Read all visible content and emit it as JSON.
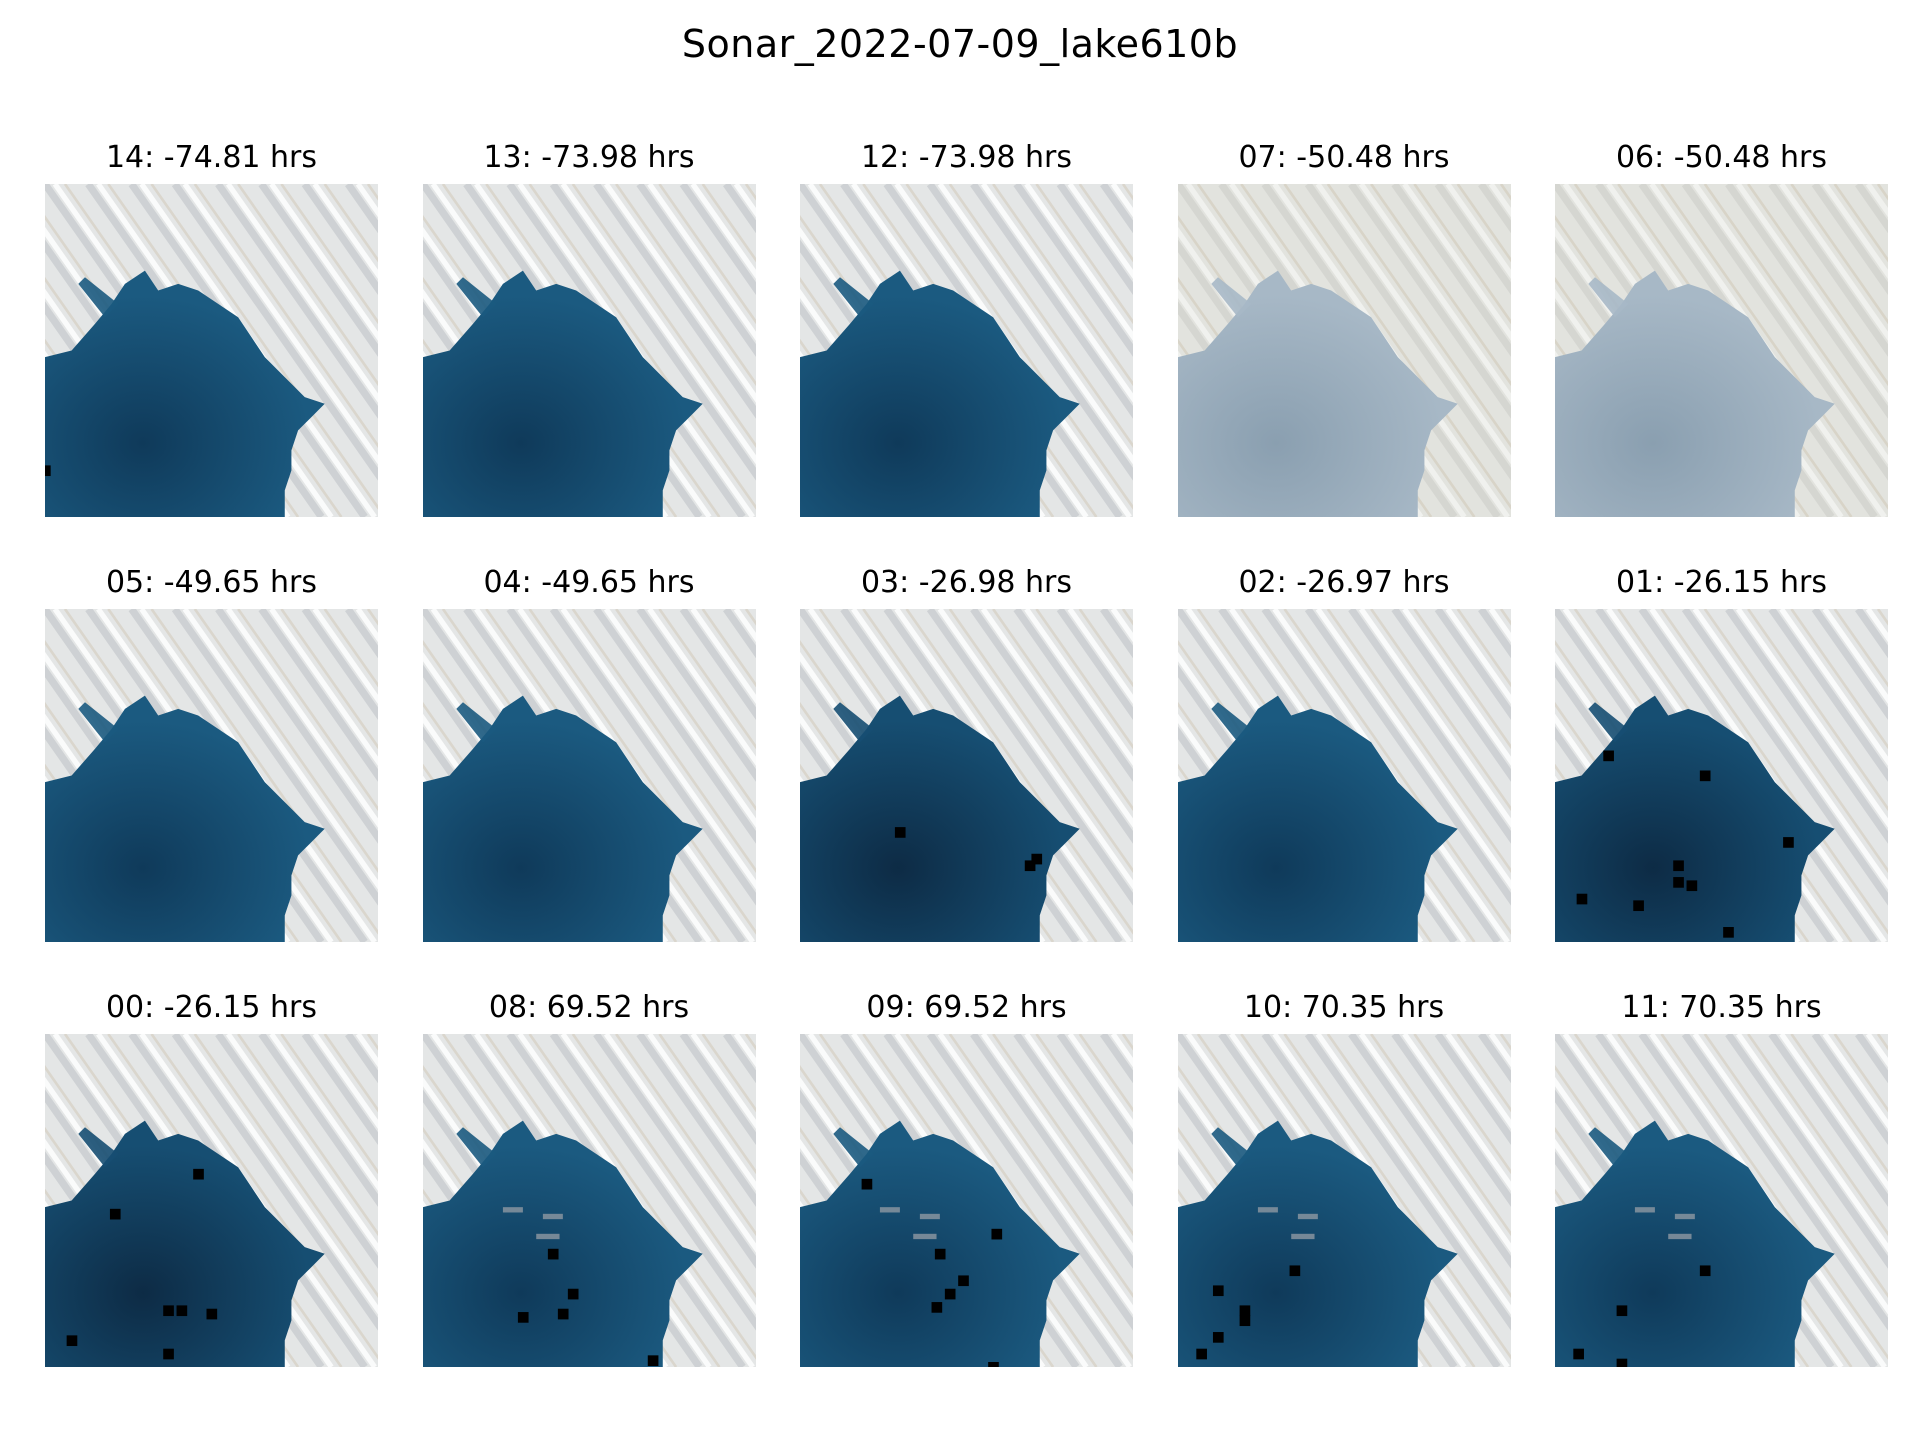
{
  "figure": {
    "title": "Sonar_2022-07-09_lake610b"
  },
  "panels": [
    {
      "label": "14: -74.81 hrs",
      "style": "clear",
      "marks": [
        [
          0.0,
          0.86
        ]
      ]
    },
    {
      "label": "13: -73.98 hrs",
      "style": "clear",
      "marks": []
    },
    {
      "label": "12: -73.98 hrs",
      "style": "clear",
      "marks": []
    },
    {
      "label": "07: -50.48 hrs",
      "style": "hazy",
      "marks": []
    },
    {
      "label": "06: -50.48 hrs",
      "style": "hazy",
      "marks": []
    },
    {
      "label": "05: -49.65 hrs",
      "style": "clear",
      "marks": []
    },
    {
      "label": "04: -49.65 hrs",
      "style": "clear",
      "marks": []
    },
    {
      "label": "03: -26.98 hrs",
      "style": "dark",
      "marks": [
        [
          0.3,
          0.67
        ],
        [
          0.71,
          0.75
        ],
        [
          0.69,
          0.77
        ]
      ]
    },
    {
      "label": "02: -26.97 hrs",
      "style": "clear",
      "marks": []
    },
    {
      "label": "01: -26.15 hrs",
      "style": "dark",
      "marks": [
        [
          0.45,
          0.5
        ],
        [
          0.16,
          0.44
        ],
        [
          0.7,
          0.7
        ],
        [
          0.37,
          0.77
        ],
        [
          0.41,
          0.83
        ],
        [
          0.37,
          0.82
        ],
        [
          0.08,
          0.87
        ],
        [
          0.25,
          0.89
        ],
        [
          0.52,
          0.97
        ]
      ]
    },
    {
      "label": "00: -26.15 hrs",
      "style": "dark",
      "marks": [
        [
          0.46,
          0.42
        ],
        [
          0.21,
          0.54
        ],
        [
          0.37,
          0.83
        ],
        [
          0.41,
          0.83
        ],
        [
          0.5,
          0.84
        ],
        [
          0.08,
          0.92
        ],
        [
          0.37,
          0.96
        ]
      ]
    },
    {
      "label": "08: 69.52 hrs",
      "style": "streaked",
      "marks": [
        [
          0.39,
          0.66
        ],
        [
          0.45,
          0.78
        ],
        [
          0.3,
          0.85
        ],
        [
          0.42,
          0.84
        ],
        [
          0.69,
          0.98
        ]
      ]
    },
    {
      "label": "09: 69.52 hrs",
      "style": "streaked",
      "marks": [
        [
          0.2,
          0.45
        ],
        [
          0.59,
          0.6
        ],
        [
          0.42,
          0.66
        ],
        [
          0.49,
          0.74
        ],
        [
          0.45,
          0.78
        ],
        [
          0.41,
          0.82
        ],
        [
          0.58,
          1.0
        ]
      ]
    },
    {
      "label": "10: 70.35 hrs",
      "style": "streaked",
      "marks": [
        [
          0.35,
          0.71
        ],
        [
          0.12,
          0.77
        ],
        [
          0.2,
          0.83
        ],
        [
          0.2,
          0.86
        ],
        [
          0.12,
          0.91
        ],
        [
          0.07,
          0.96
        ]
      ]
    },
    {
      "label": "11: 70.35 hrs",
      "style": "streaked",
      "marks": [
        [
          0.45,
          0.71
        ],
        [
          0.2,
          0.83
        ],
        [
          0.07,
          0.96
        ],
        [
          0.2,
          0.99
        ]
      ]
    }
  ]
}
